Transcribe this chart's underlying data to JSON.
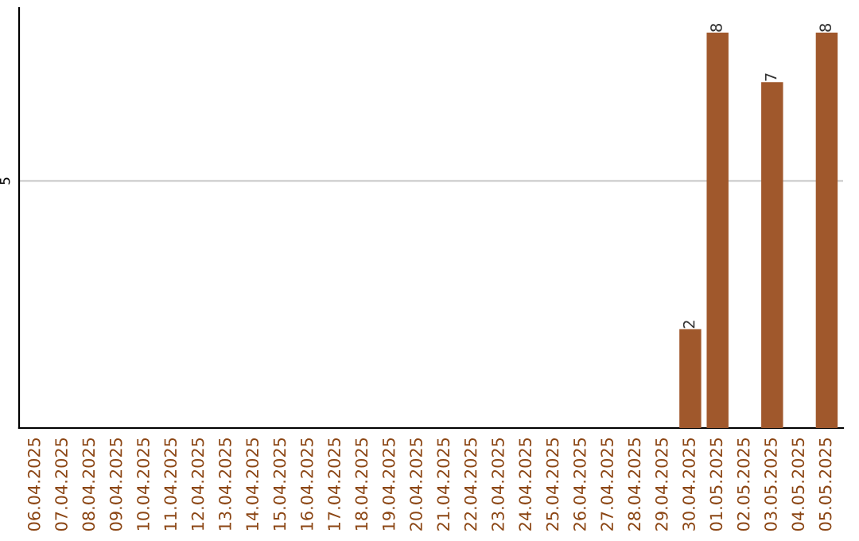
{
  "chart_data": {
    "type": "bar",
    "categories": [
      "06.04.2025",
      "07.04.2025",
      "08.04.2025",
      "09.04.2025",
      "10.04.2025",
      "11.04.2025",
      "12.04.2025",
      "13.04.2025",
      "14.04.2025",
      "15.04.2025",
      "16.04.2025",
      "17.04.2025",
      "18.04.2025",
      "19.04.2025",
      "20.04.2025",
      "21.04.2025",
      "22.04.2025",
      "23.04.2025",
      "24.04.2025",
      "25.04.2025",
      "26.04.2025",
      "27.04.2025",
      "28.04.2025",
      "29.04.2025",
      "30.04.2025",
      "01.05.2025",
      "02.05.2025",
      "03.05.2025",
      "04.05.2025",
      "05.05.2025"
    ],
    "values": [
      null,
      null,
      null,
      null,
      null,
      null,
      null,
      null,
      null,
      null,
      null,
      null,
      null,
      null,
      null,
      null,
      null,
      null,
      null,
      null,
      null,
      null,
      null,
      null,
      2,
      8,
      null,
      7,
      null,
      8
    ],
    "data_labels": true,
    "color": "#a0582c",
    "ylim": [
      0,
      8.5
    ],
    "yticks": [
      5
    ],
    "grid": "y",
    "legend": false
  }
}
